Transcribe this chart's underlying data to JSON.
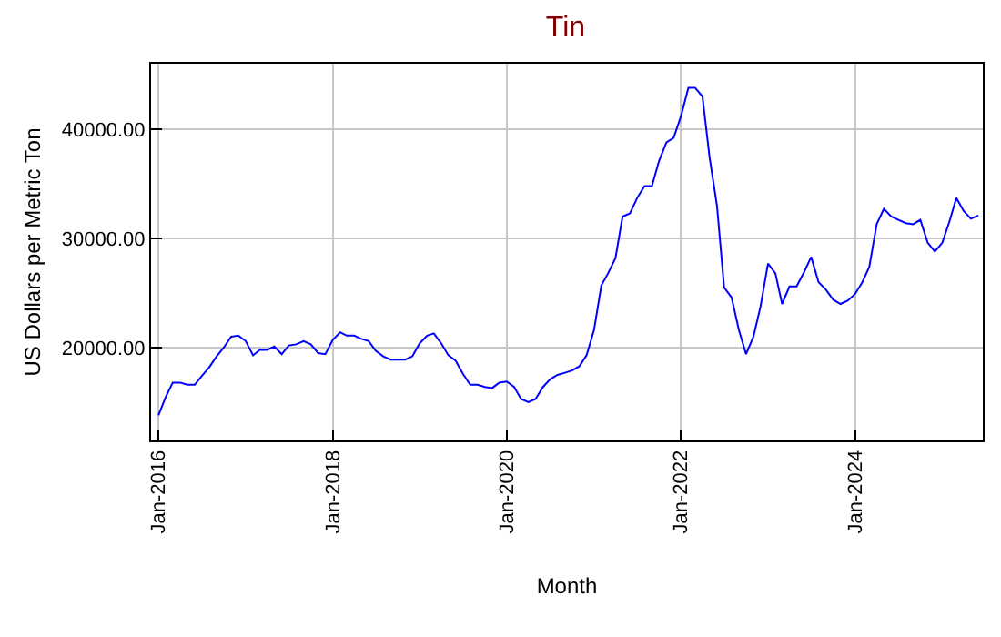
{
  "chart_data": {
    "type": "line",
    "title": "Tin",
    "xlabel": "Month",
    "ylabel": "US Dollars per Metric Ton",
    "x": [
      "2016-01",
      "2016-02",
      "2016-03",
      "2016-04",
      "2016-05",
      "2016-06",
      "2016-07",
      "2016-08",
      "2016-09",
      "2016-10",
      "2016-11",
      "2016-12",
      "2017-01",
      "2017-02",
      "2017-03",
      "2017-04",
      "2017-05",
      "2017-06",
      "2017-07",
      "2017-08",
      "2017-09",
      "2017-10",
      "2017-11",
      "2017-12",
      "2018-01",
      "2018-02",
      "2018-03",
      "2018-04",
      "2018-05",
      "2018-06",
      "2018-07",
      "2018-08",
      "2018-09",
      "2018-10",
      "2018-11",
      "2018-12",
      "2019-01",
      "2019-02",
      "2019-03",
      "2019-04",
      "2019-05",
      "2019-06",
      "2019-07",
      "2019-08",
      "2019-09",
      "2019-10",
      "2019-11",
      "2019-12",
      "2020-01",
      "2020-02",
      "2020-03",
      "2020-04",
      "2020-05",
      "2020-06",
      "2020-07",
      "2020-08",
      "2020-09",
      "2020-10",
      "2020-11",
      "2020-12",
      "2021-01",
      "2021-02",
      "2021-03",
      "2021-04",
      "2021-05",
      "2021-06",
      "2021-07",
      "2021-08",
      "2021-09",
      "2021-10",
      "2021-11",
      "2021-12",
      "2022-01",
      "2022-02",
      "2022-03",
      "2022-04",
      "2022-05",
      "2022-06",
      "2022-07",
      "2022-08",
      "2022-09",
      "2022-10",
      "2022-11",
      "2022-12",
      "2023-01",
      "2023-02",
      "2023-03",
      "2023-04",
      "2023-05",
      "2023-06",
      "2023-07",
      "2023-08",
      "2023-09",
      "2023-10",
      "2023-11",
      "2023-12",
      "2024-01",
      "2024-02",
      "2024-03",
      "2024-04",
      "2024-05",
      "2024-06",
      "2024-07",
      "2024-08",
      "2024-09",
      "2024-10",
      "2024-11",
      "2024-12",
      "2025-01",
      "2025-02",
      "2025-03",
      "2025-04",
      "2025-05",
      "2025-06"
    ],
    "series": [
      {
        "color": "#0000ff",
        "values": [
          13800,
          15500,
          16800,
          16800,
          16600,
          16600,
          17400,
          18200,
          19200,
          20000,
          21000,
          21100,
          20600,
          19300,
          19800,
          19800,
          20100,
          19400,
          20200,
          20300,
          20600,
          20300,
          19500,
          19400,
          20700,
          21400,
          21100,
          21100,
          20800,
          20600,
          19700,
          19200,
          18900,
          18900,
          18900,
          19200,
          20400,
          21100,
          21300,
          20400,
          19300,
          18800,
          17600,
          16600,
          16600,
          16400,
          16300,
          16800,
          16900,
          16400,
          15300,
          15000,
          15300,
          16400,
          17100,
          17500,
          17700,
          17900,
          18300,
          19300,
          21600,
          25700,
          26800,
          28200,
          32000,
          32300,
          33700,
          34800,
          34800,
          37100,
          38800,
          39200,
          41200,
          43800,
          43800,
          43000,
          37400,
          33000,
          25500,
          24600,
          21600,
          19400,
          21000,
          23800,
          27700,
          26800,
          24000,
          25600,
          25600,
          26900,
          28300,
          26000,
          25300,
          24400,
          24000,
          24300,
          24900,
          26000,
          27400,
          31300,
          32700,
          32000,
          31700,
          31400,
          31300,
          31700,
          29600,
          28800,
          29600,
          31600,
          33700,
          32500,
          31800,
          32100
        ]
      }
    ],
    "xlim": [
      "2015-12-01",
      "2025-06-20"
    ],
    "xticks": [
      {
        "value": "2016-01",
        "label": "Jan-2016"
      },
      {
        "value": "2018-01",
        "label": "Jan-2018"
      },
      {
        "value": "2020-01",
        "label": "Jan-2020"
      },
      {
        "value": "2022-01",
        "label": "Jan-2022"
      },
      {
        "value": "2024-01",
        "label": "Jan-2024"
      }
    ],
    "ylim": [
      11500,
      46000
    ],
    "yticks": [
      {
        "value": 20000,
        "label": "20000.00"
      },
      {
        "value": 30000,
        "label": "30000.00"
      },
      {
        "value": 40000,
        "label": "40000.00"
      }
    ],
    "grid": true
  }
}
